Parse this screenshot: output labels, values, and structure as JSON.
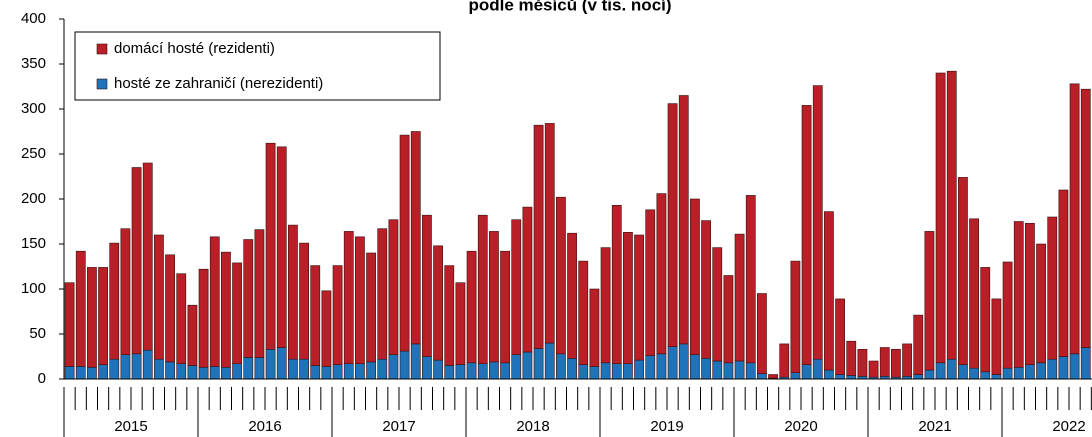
{
  "chart_data": {
    "type": "stacked-bar",
    "title": "podle měsíců (v tis. nocí)",
    "categories": [
      null,
      null,
      null,
      null,
      null,
      null,
      null,
      null,
      null,
      null,
      null,
      null,
      null,
      null,
      null,
      null,
      null,
      null,
      null,
      null,
      null,
      null,
      null,
      null,
      null,
      null,
      null,
      null,
      null,
      null,
      null,
      null,
      null,
      null,
      null,
      null,
      null,
      null,
      null,
      null,
      null,
      null,
      null,
      null,
      null,
      null,
      null,
      null,
      null,
      null,
      null,
      null,
      null,
      null,
      null,
      null,
      null,
      null,
      null,
      null,
      null,
      null,
      null,
      null,
      null,
      null,
      null,
      null,
      null,
      null,
      null,
      null,
      null,
      null,
      null,
      null,
      null,
      null,
      null,
      null,
      null,
      null,
      null,
      null,
      null,
      null,
      null,
      null,
      null,
      null,
      null,
      null
    ],
    "years": [
      "2015",
      "2016",
      "2017",
      "2018",
      "2019",
      "2020",
      "2021",
      "2022"
    ],
    "series": [
      {
        "name": "hosté ze zahraničí (nerezidenti)",
        "color": "#1f74b9",
        "values": [
          14,
          14,
          13,
          16,
          22,
          27,
          28,
          32,
          22,
          19,
          17,
          15,
          13,
          14,
          13,
          17,
          24,
          24,
          33,
          35,
          22,
          22,
          15,
          14,
          16,
          17,
          17,
          19,
          22,
          27,
          31,
          39,
          25,
          21,
          15,
          16,
          18,
          17,
          19,
          18,
          27,
          30,
          34,
          40,
          28,
          23,
          16,
          14,
          18,
          17,
          17,
          21,
          26,
          28,
          36,
          39,
          27,
          23,
          20,
          18,
          20,
          18,
          6,
          1,
          2,
          7,
          16,
          22,
          10,
          5,
          4,
          3,
          2,
          3,
          2,
          3,
          5,
          10,
          18,
          22,
          16,
          12,
          8,
          5,
          12,
          13,
          16,
          18,
          22,
          25,
          28,
          35
        ]
      },
      {
        "name": "domácí hosté (rezidenti)",
        "color": "#b81f26",
        "values": [
          93,
          128,
          111,
          108,
          129,
          140,
          207,
          208,
          138,
          119,
          100,
          67,
          109,
          144,
          128,
          112,
          131,
          142,
          229,
          223,
          149,
          129,
          111,
          84,
          110,
          147,
          141,
          121,
          145,
          150,
          240,
          236,
          157,
          127,
          111,
          91,
          124,
          165,
          145,
          124,
          150,
          161,
          248,
          244,
          174,
          139,
          115,
          86,
          128,
          176,
          146,
          139,
          162,
          178,
          270,
          276,
          173,
          153,
          126,
          97,
          141,
          186,
          89,
          4,
          37,
          124,
          288,
          304,
          176,
          84,
          38,
          30,
          18,
          32,
          31,
          36,
          66,
          154,
          322,
          320,
          208,
          166,
          116,
          84,
          118,
          162,
          157,
          132,
          158,
          185,
          300,
          287
        ]
      }
    ],
    "legend_order": [
      1,
      0
    ],
    "ylim": [
      0,
      400
    ],
    "yticks": [
      0,
      50,
      100,
      150,
      200,
      250,
      300,
      350,
      400
    ],
    "grid": false
  }
}
